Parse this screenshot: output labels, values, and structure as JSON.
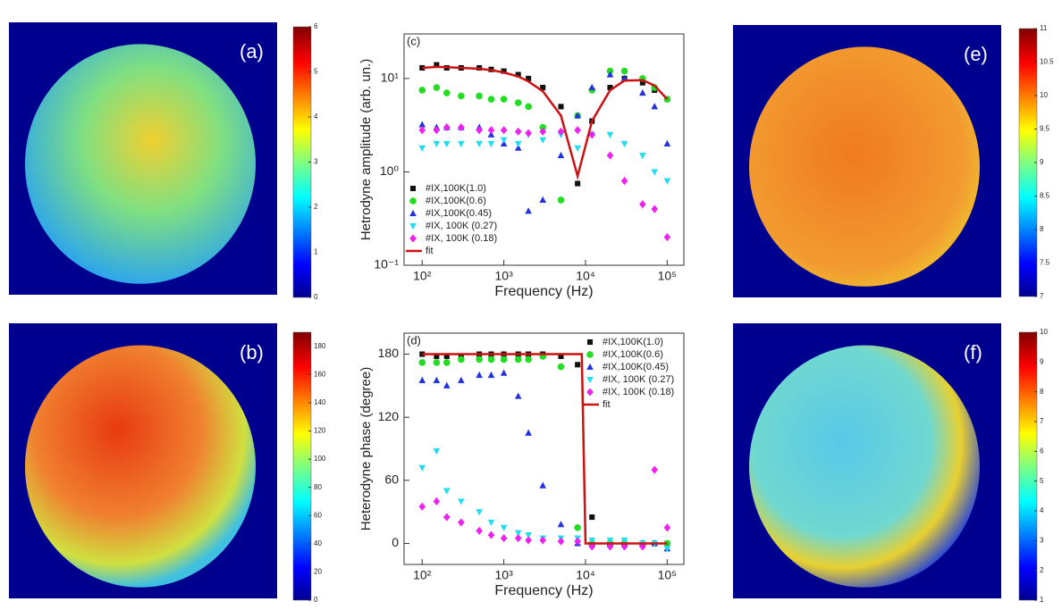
{
  "chart_data": [
    {
      "type": "heatmap",
      "label": "(a)",
      "colormap": "jet",
      "ylim": [
        0,
        6
      ],
      "yticks": [
        0,
        1,
        2,
        3,
        4,
        5,
        6
      ]
    },
    {
      "type": "scatter",
      "label": "(c)",
      "xlabel": "Frequency (Hz)",
      "ylabel": "Hetrodyne amplitude (arb. un.)",
      "xlog": true,
      "ylog": true,
      "xlim": [
        60,
        160000
      ],
      "ylim": [
        0.1,
        30
      ],
      "xticks": [
        {
          "value": 100,
          "label": "10²"
        },
        {
          "value": 1000,
          "label": "10³"
        },
        {
          "value": 10000,
          "label": "10⁴"
        },
        {
          "value": 100000,
          "label": "10⁵"
        }
      ],
      "yticks": [
        {
          "value": 0.1,
          "label": "10⁻¹"
        },
        {
          "value": 1,
          "label": "10⁰"
        },
        {
          "value": 10,
          "label": "10¹"
        }
      ],
      "legend": "lower-left",
      "x": [
        100,
        150,
        200,
        300,
        500,
        700,
        1000,
        1500,
        2000,
        3000,
        5000,
        8000,
        12000,
        20000,
        30000,
        50000,
        70000,
        100000
      ],
      "series": [
        {
          "name": "#IX,100K(1.0)",
          "color": "#111111",
          "marker": "square",
          "values": [
            13,
            14,
            13,
            13,
            13,
            12.5,
            12,
            11,
            10,
            8,
            5,
            0.75,
            3.5,
            8,
            10,
            9,
            7.5,
            6
          ]
        },
        {
          "name": "#IX,100K(0.6)",
          "color": "#22dd22",
          "marker": "circle",
          "values": [
            7.5,
            8,
            7,
            6.5,
            6.5,
            6,
            6,
            5.5,
            5,
            3,
            0.5,
            4,
            7.5,
            12,
            12,
            10,
            8,
            6
          ]
        },
        {
          "name": "#IX,100K(0.45)",
          "color": "#2233dd",
          "marker": "triangle-up",
          "values": [
            3.2,
            3,
            3,
            3,
            3,
            2.5,
            2,
            1.8,
            0.38,
            0.5,
            1.5,
            4,
            8,
            11,
            10,
            7,
            5,
            2
          ]
        },
        {
          "name": "#IX, 100K (0.27)",
          "color": "#22ddee",
          "marker": "triangle-down",
          "values": [
            1.8,
            2,
            2,
            2,
            2,
            2,
            2.2,
            2,
            2.5,
            2.2,
            2.5,
            1.8,
            2.5,
            2.5,
            2,
            1.5,
            1,
            0.8
          ]
        },
        {
          "name": "#IX, 100K (0.18)",
          "color": "#ee22ee",
          "marker": "diamond",
          "values": [
            2.8,
            2.8,
            3,
            3,
            2.8,
            2.8,
            2.8,
            2.7,
            2.6,
            2.7,
            2.7,
            2.8,
            2.5,
            1.5,
            0.8,
            0.45,
            0.4,
            0.2
          ]
        },
        {
          "name": "fit",
          "color": "#cc1111",
          "marker": "line",
          "values": [
            13,
            13.3,
            13.2,
            13,
            12.7,
            12.3,
            11.6,
            10.5,
            9.3,
            7.3,
            4,
            0.9,
            3.5,
            7.5,
            9.5,
            9.6,
            8.4,
            6
          ]
        }
      ]
    },
    {
      "type": "heatmap",
      "label": "(e)",
      "colormap": "jet",
      "ylim": [
        7,
        11
      ],
      "yticks": [
        7,
        7.5,
        8,
        8.5,
        9,
        9.5,
        10,
        10.5,
        11
      ]
    },
    {
      "type": "heatmap",
      "label": "(b)",
      "colormap": "jet",
      "ylim": [
        0,
        190
      ],
      "yticks": [
        0,
        20,
        40,
        60,
        80,
        100,
        120,
        140,
        160,
        180
      ]
    },
    {
      "type": "scatter",
      "label": "(d)",
      "xlabel": "Frequency (Hz)",
      "ylabel": "Heterodyne phase (degree)",
      "xlog": true,
      "ylog": false,
      "xlim": [
        60,
        160000
      ],
      "ylim": [
        -20,
        200
      ],
      "xticks": [
        {
          "value": 100,
          "label": "10²"
        },
        {
          "value": 1000,
          "label": "10³"
        },
        {
          "value": 10000,
          "label": "10⁴"
        },
        {
          "value": 100000,
          "label": "10⁵"
        }
      ],
      "yticks": [
        0,
        60,
        120,
        180
      ],
      "legend": "upper-right",
      "x": [
        100,
        150,
        200,
        300,
        500,
        700,
        1000,
        1500,
        2000,
        3000,
        5000,
        8000,
        12000,
        20000,
        30000,
        50000,
        70000,
        100000
      ],
      "series": [
        {
          "name": "#IX,100K(1.0)",
          "color": "#111111",
          "marker": "square",
          "values": [
            180,
            178,
            178,
            178,
            180,
            180,
            180,
            180,
            180,
            180,
            178,
            170,
            25,
            0,
            0,
            0,
            0,
            0
          ]
        },
        {
          "name": "#IX,100K(0.6)",
          "color": "#22dd22",
          "marker": "circle",
          "values": [
            172,
            172,
            172,
            175,
            175,
            175,
            175,
            175,
            175,
            178,
            168,
            15,
            0,
            0,
            0,
            0,
            0,
            0
          ]
        },
        {
          "name": "#IX,100K(0.45)",
          "color": "#2233dd",
          "marker": "triangle-up",
          "values": [
            155,
            155,
            150,
            155,
            160,
            160,
            162,
            140,
            105,
            55,
            18,
            0,
            0,
            0,
            0,
            0,
            0,
            -5
          ]
        },
        {
          "name": "#IX, 100K (0.27)",
          "color": "#22ddee",
          "marker": "triangle-down",
          "values": [
            72,
            88,
            50,
            40,
            30,
            20,
            15,
            10,
            8,
            5,
            5,
            5,
            3,
            3,
            3,
            0,
            0,
            -5
          ]
        },
        {
          "name": "#IX, 100K (0.18)",
          "color": "#ee22ee",
          "marker": "diamond",
          "values": [
            35,
            40,
            25,
            20,
            12,
            8,
            5,
            5,
            3,
            3,
            2,
            2,
            -3,
            -3,
            -3,
            -3,
            70,
            15
          ]
        },
        {
          "name": "fit",
          "color": "#cc1111",
          "marker": "line",
          "x": [
            100,
            9000,
            10000,
            100000
          ],
          "values": [
            180,
            180,
            0,
            0
          ]
        }
      ]
    },
    {
      "type": "heatmap",
      "label": "(f)",
      "colormap": "jet",
      "ylim": [
        1,
        10
      ],
      "yticks": [
        1,
        2,
        3,
        4,
        5,
        6,
        7,
        8,
        9,
        10
      ]
    }
  ]
}
